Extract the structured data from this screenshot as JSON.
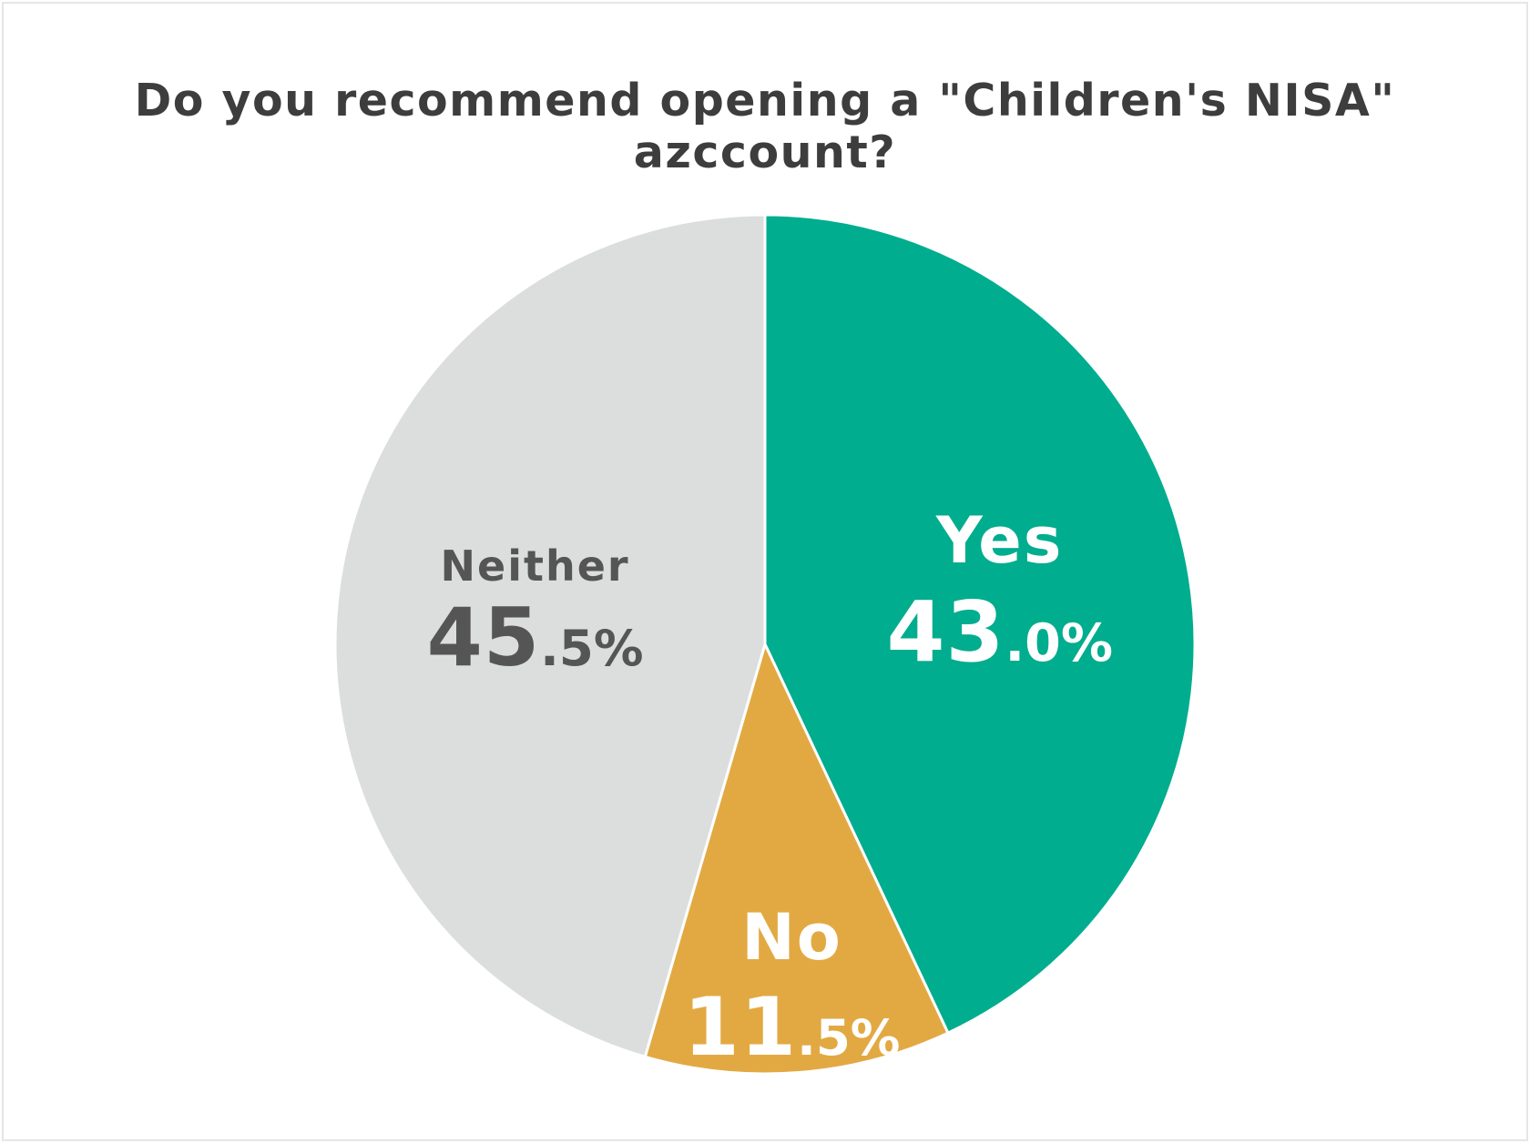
{
  "chart_data": {
    "type": "pie",
    "title": "Do you recommend opening a \"Children's NISA\" azccount?",
    "start_angle_deg": 0,
    "direction": "clockwise",
    "slices": [
      {
        "label": "Yes",
        "value": 43.0,
        "int": "43",
        "dec": ".0",
        "pct": "%",
        "color": "#00ad8e",
        "text_color": "#ffffff"
      },
      {
        "label": "No",
        "value": 11.5,
        "int": "11",
        "dec": ".5",
        "pct": "%",
        "color": "#e2a943",
        "text_color": "#ffffff"
      },
      {
        "label": "Neither",
        "value": 45.5,
        "int": "45",
        "dec": ".5",
        "pct": "%",
        "color": "#dcdedd",
        "text_color": "#555555"
      }
    ]
  }
}
